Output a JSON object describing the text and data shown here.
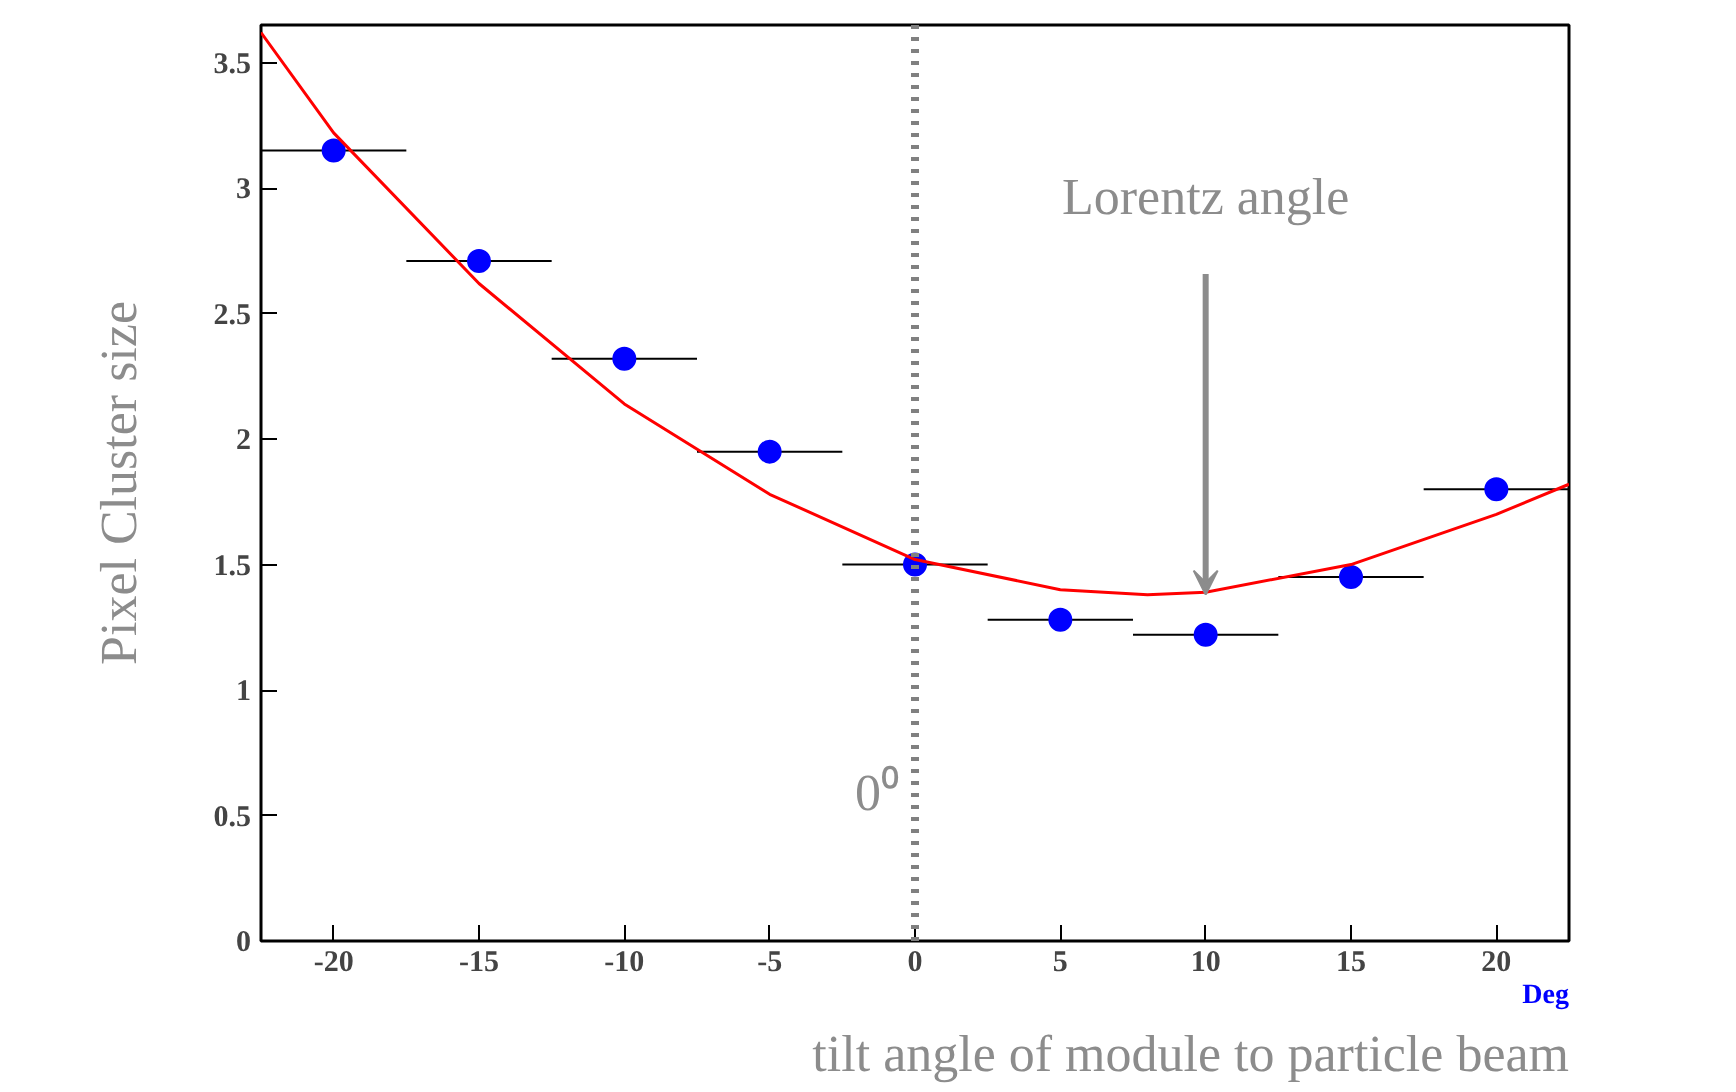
{
  "chart_data": {
    "type": "scatter",
    "xlabel": "Deg",
    "ylabel": "Pixel Cluster size",
    "xlim": [
      -22.5,
      22.5
    ],
    "ylim": [
      0,
      3.65
    ],
    "xticks": [
      -20,
      -15,
      -10,
      -5,
      0,
      5,
      10,
      15,
      20
    ],
    "yticks": [
      0,
      0.5,
      1,
      1.5,
      2,
      2.5,
      3,
      3.5
    ],
    "grid": false,
    "series": [
      {
        "marker": "circle",
        "color": "#0000ff",
        "x": [
          -20,
          -15,
          -10,
          -5,
          0,
          5,
          10,
          15,
          20
        ],
        "values": [
          3.15,
          2.71,
          2.32,
          1.95,
          1.5,
          1.28,
          1.22,
          1.45,
          1.8
        ],
        "xerrors": [
          2.5,
          2.5,
          2.5,
          2.5,
          2.5,
          2.5,
          2.5,
          2.5,
          2.5
        ]
      },
      {
        "type": "line",
        "color": "#ff0000",
        "line_style": "solid",
        "x": [
          -22.5,
          -20,
          -15,
          -10,
          -5,
          0,
          5,
          8,
          10,
          15,
          20,
          22.5
        ],
        "values": [
          3.62,
          3.22,
          2.62,
          2.14,
          1.78,
          1.52,
          1.4,
          1.38,
          1.39,
          1.5,
          1.7,
          1.82
        ]
      }
    ],
    "ref_lines": [
      {
        "axis": "x",
        "value": 0,
        "label": "0⁰",
        "color": "#808080",
        "line_style": "dotted"
      }
    ],
    "annotations": [
      {
        "text": "Lorentz angle",
        "x": 10,
        "y": 1.38
      },
      "tilt angle of module to particle beam"
    ]
  }
}
